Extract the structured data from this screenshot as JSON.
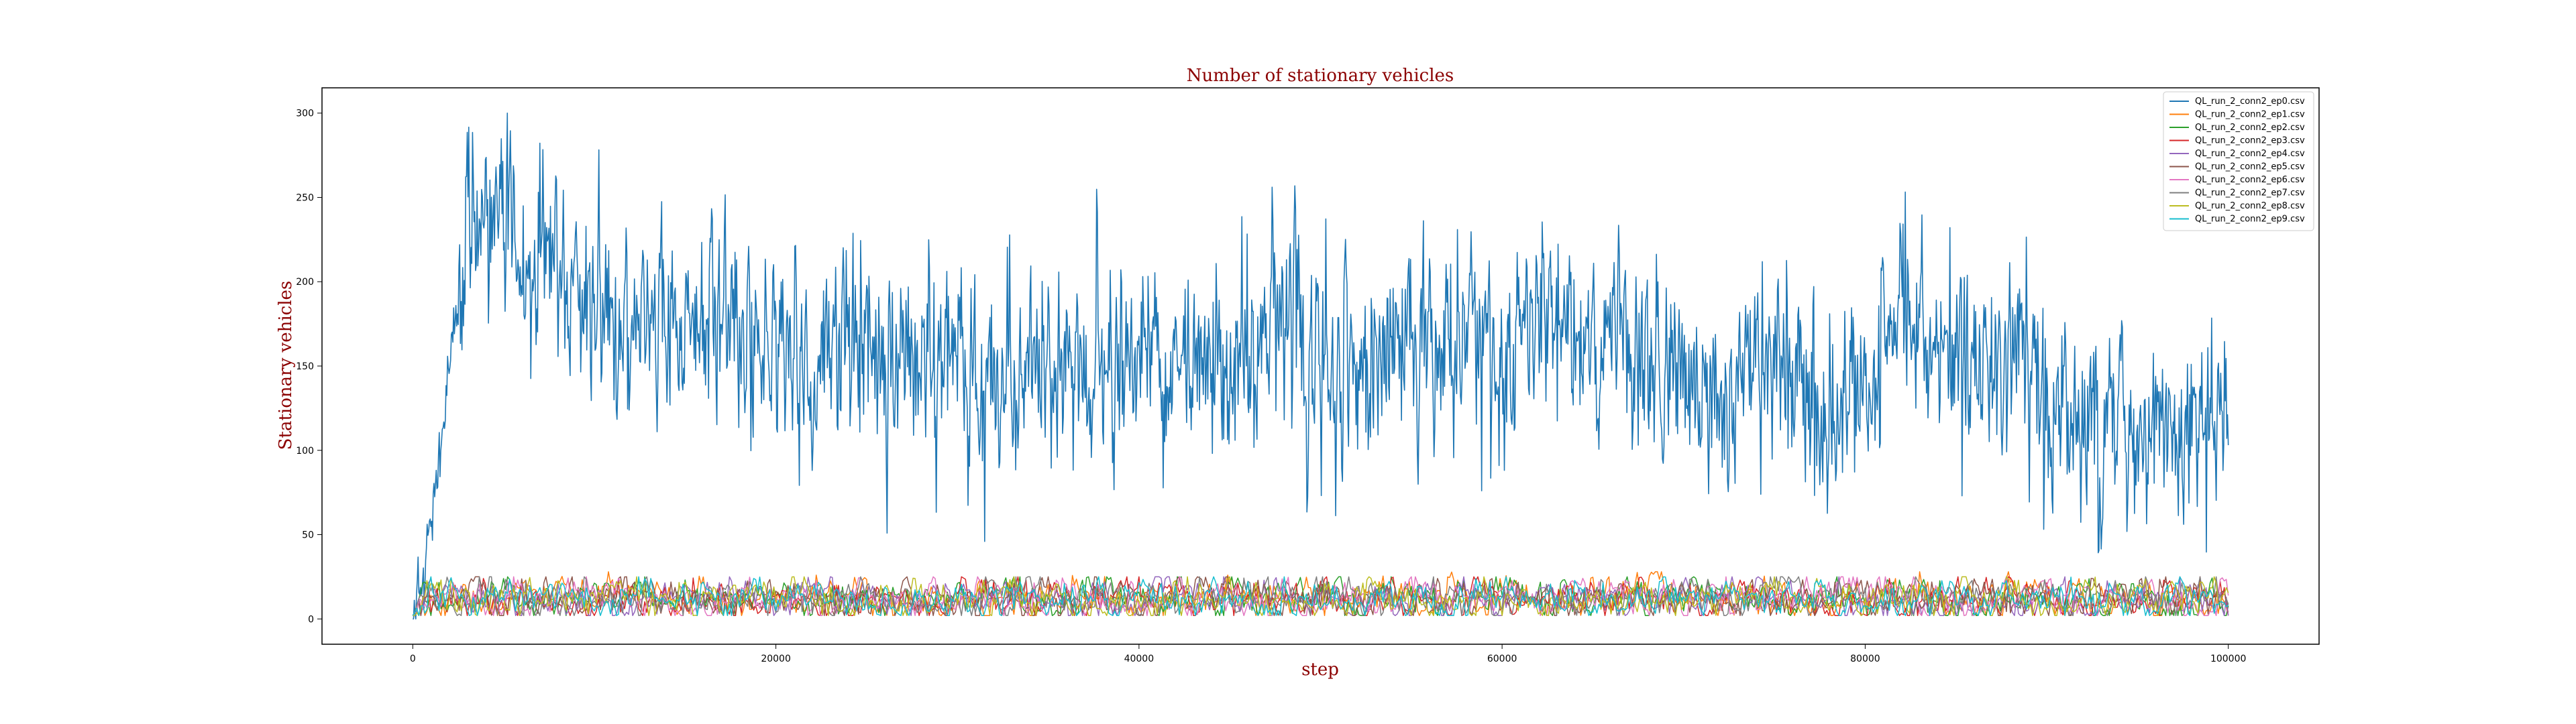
{
  "chart_data": {
    "type": "line",
    "title": "Number of stationary vehicles",
    "xlabel": "step",
    "ylabel": "Stationary vehicles",
    "xlim": [
      -5000,
      105000
    ],
    "ylim": [
      -15,
      315
    ],
    "xticks": [
      0,
      20000,
      40000,
      60000,
      80000,
      100000
    ],
    "yticks": [
      0,
      50,
      100,
      150,
      200,
      250,
      300
    ],
    "grid": false,
    "legend_position": "top-right",
    "series": [
      {
        "name": "QL_run_2_conn2_ep0.csv",
        "color": "#1f77b4",
        "x": [
          0,
          500,
          1000,
          1500,
          2000,
          2500,
          3000,
          3500,
          4000,
          4500,
          5000,
          6000,
          7000,
          8000,
          9000,
          10000,
          12000,
          14000,
          16000,
          18000,
          20000,
          22000,
          24000,
          26000,
          28000,
          30000,
          32000,
          34000,
          36000,
          38000,
          40000,
          42000,
          44000,
          46000,
          48000,
          50000,
          52000,
          54000,
          56000,
          58000,
          60000,
          62000,
          64000,
          66000,
          68000,
          70000,
          72000,
          74000,
          76000,
          78000,
          80000,
          82000,
          84000,
          86000,
          88000,
          90000,
          92000,
          94000,
          96000,
          98000,
          100000
        ],
        "values": [
          0,
          20,
          55,
          100,
          150,
          195,
          225,
          230,
          240,
          245,
          240,
          225,
          215,
          205,
          195,
          185,
          180,
          175,
          170,
          165,
          160,
          160,
          158,
          155,
          150,
          158,
          150,
          150,
          148,
          145,
          152,
          158,
          155,
          150,
          178,
          148,
          150,
          155,
          158,
          155,
          145,
          185,
          165,
          160,
          150,
          148,
          130,
          150,
          145,
          130,
          140,
          170,
          160,
          150,
          165,
          140,
          120,
          125,
          115,
          110,
          110
        ],
        "y_range_visible": [
          0,
          300
        ]
      },
      {
        "name": "QL_run_2_conn2_ep1.csv",
        "color": "#ff7f0e",
        "values_range": [
          2,
          28
        ],
        "typical": 12
      },
      {
        "name": "QL_run_2_conn2_ep2.csv",
        "color": "#2ca02c",
        "values_range": [
          2,
          25
        ],
        "typical": 12
      },
      {
        "name": "QL_run_2_conn2_ep3.csv",
        "color": "#d62728",
        "values_range": [
          2,
          25
        ],
        "typical": 12
      },
      {
        "name": "QL_run_2_conn2_ep4.csv",
        "color": "#9467bd",
        "values_range": [
          2,
          25
        ],
        "typical": 12
      },
      {
        "name": "QL_run_2_conn2_ep5.csv",
        "color": "#8c564b",
        "values_range": [
          2,
          25
        ],
        "typical": 12
      },
      {
        "name": "QL_run_2_conn2_ep6.csv",
        "color": "#e377c2",
        "values_range": [
          2,
          25
        ],
        "typical": 12
      },
      {
        "name": "QL_run_2_conn2_ep7.csv",
        "color": "#7f7f7f",
        "values_range": [
          2,
          25
        ],
        "typical": 12
      },
      {
        "name": "QL_run_2_conn2_ep8.csv",
        "color": "#bcbd22",
        "values_range": [
          2,
          25
        ],
        "typical": 12
      },
      {
        "name": "QL_run_2_conn2_ep9.csv",
        "color": "#17becf",
        "values_range": [
          2,
          25
        ],
        "typical": 12
      }
    ]
  }
}
